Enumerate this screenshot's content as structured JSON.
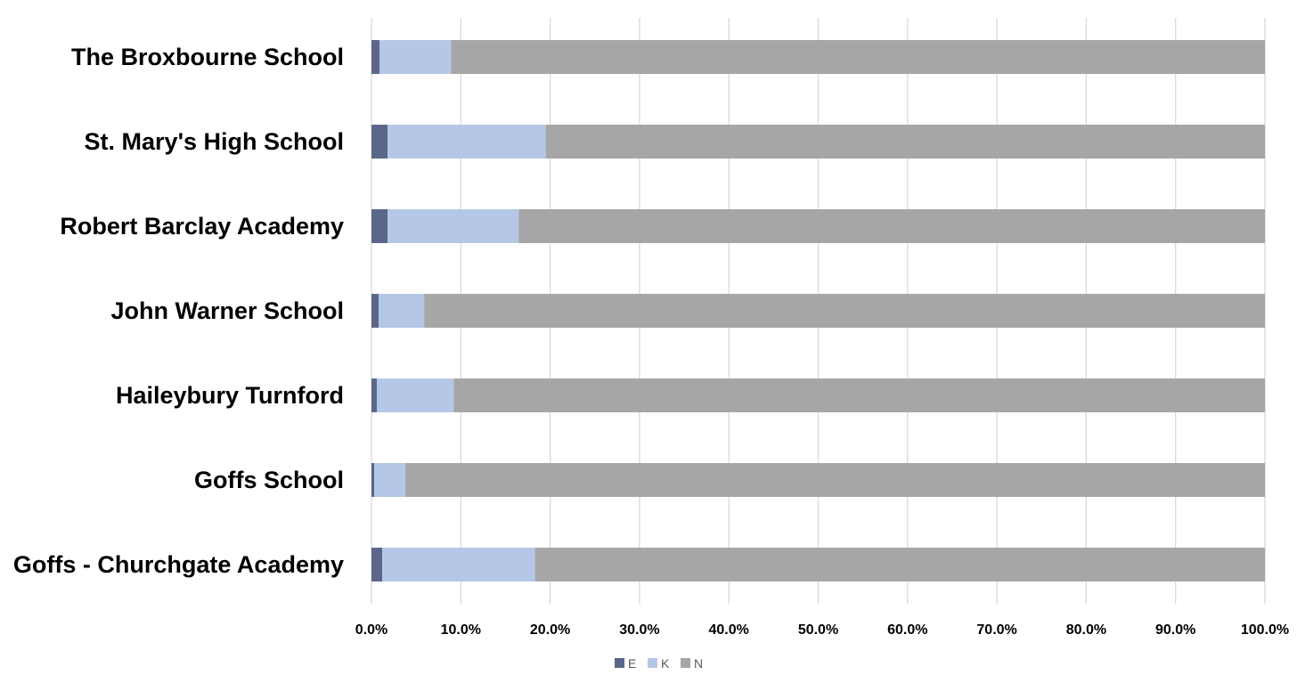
{
  "chart_data": {
    "type": "bar",
    "orientation": "horizontal",
    "stacked": "100%",
    "categories": [
      "The Broxbourne School",
      "St. Mary's High School",
      "Robert Barclay Academy",
      "John Warner School",
      "Haileybury Turnford",
      "Goffs School",
      "Goffs - Churchgate Academy"
    ],
    "series": [
      {
        "name": "E",
        "color": "#5b6788",
        "values": [
          0.9,
          1.8,
          1.8,
          0.8,
          0.6,
          0.3,
          1.2
        ]
      },
      {
        "name": "K",
        "color": "#b4c7e7",
        "values": [
          8.0,
          17.7,
          14.7,
          5.1,
          8.6,
          3.5,
          17.1
        ]
      },
      {
        "name": "N",
        "color": "#a6a6a6",
        "values": [
          91.1,
          80.5,
          83.5,
          94.1,
          90.8,
          96.2,
          81.7
        ]
      }
    ],
    "x_ticks": [
      "0.0%",
      "10.0%",
      "20.0%",
      "30.0%",
      "40.0%",
      "50.0%",
      "60.0%",
      "70.0%",
      "80.0%",
      "90.0%",
      "100.0%"
    ],
    "xlim": [
      0,
      100
    ],
    "grid": true,
    "legend_position": "bottom"
  }
}
